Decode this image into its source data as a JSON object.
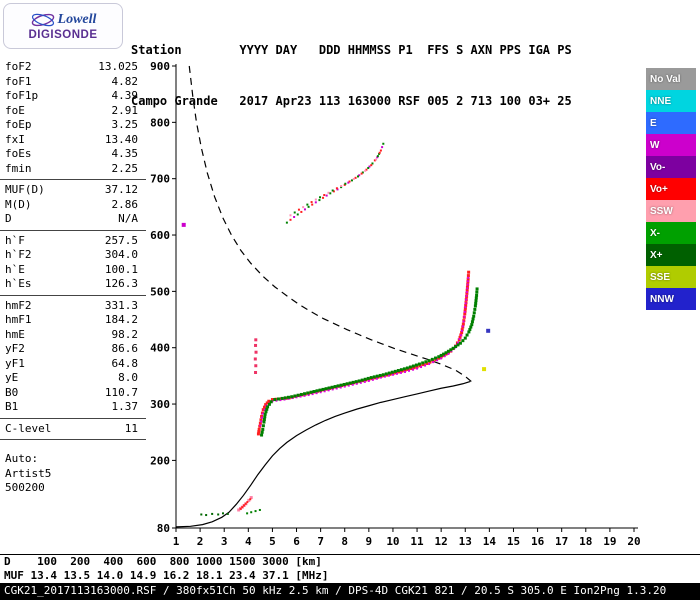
{
  "logo": {
    "line1": "Lowell",
    "line2": "DIGISONDE"
  },
  "header": {
    "line1": "Station        YYYY DAY   DDD HHMMSS P1  FFS S AXN PPS IGA PS",
    "line2": "Campo Grande   2017 Apr23 113 163000 RSF 005 2 713 100 03+ 25",
    "fields": {
      "station": "Campo Grande",
      "year": "2017",
      "date": "Apr23",
      "day": "113",
      "time": "163000",
      "p1": "RSF",
      "ffs": "005",
      "s": "2",
      "axn": "713",
      "pps": "100",
      "iga": "03+",
      "ps": "25"
    }
  },
  "params": {
    "groups": [
      {
        "rows": [
          [
            "foF2",
            "13.025"
          ],
          [
            "foF1",
            "4.82"
          ],
          [
            "foF1p",
            "4.39"
          ],
          [
            "foE",
            "2.91"
          ],
          [
            "foEp",
            "3.25"
          ],
          [
            "fxI",
            "13.40"
          ],
          [
            "foEs",
            "4.35"
          ],
          [
            "fmin",
            "2.25"
          ]
        ]
      },
      {
        "rows": [
          [
            "MUF(D)",
            "37.12"
          ],
          [
            "M(D)",
            "2.86"
          ],
          [
            "D",
            "N/A"
          ]
        ]
      },
      {
        "rows": [
          [
            "h`F",
            "257.5"
          ],
          [
            "h`F2",
            "304.0"
          ],
          [
            "h`E",
            "100.1"
          ],
          [
            "h`Es",
            "126.3"
          ]
        ]
      },
      {
        "rows": [
          [
            "hmF2",
            "331.3"
          ],
          [
            "hmF1",
            "184.2"
          ],
          [
            "hmE",
            "98.2"
          ],
          [
            "yF2",
            "86.6"
          ],
          [
            "yF1",
            "64.8"
          ],
          [
            "yE",
            "8.0"
          ],
          [
            "B0",
            "110.7"
          ],
          [
            "B1",
            "1.37"
          ]
        ]
      },
      {
        "rows": [
          [
            "C-level",
            "11"
          ]
        ]
      },
      {
        "rows": [
          [
            "Auto:",
            ""
          ],
          [
            "Artist5",
            ""
          ],
          [
            "500200",
            ""
          ]
        ]
      }
    ]
  },
  "legend": {
    "items": [
      {
        "label": "No Val",
        "color": "#9a9a9a"
      },
      {
        "label": "NNE",
        "color": "#00d5e0"
      },
      {
        "label": "E",
        "color": "#2e6bff"
      },
      {
        "label": "W",
        "color": "#cc00cc"
      },
      {
        "label": "Vo-",
        "color": "#7d00a0"
      },
      {
        "label": "Vo+",
        "color": "#ff0000"
      },
      {
        "label": "SSW",
        "color": "#ff9fae"
      },
      {
        "label": "X-",
        "color": "#00a000"
      },
      {
        "label": "X+",
        "color": "#006000"
      },
      {
        "label": "SSE",
        "color": "#b0cc00"
      },
      {
        "label": "NNW",
        "color": "#2222cc"
      }
    ]
  },
  "bottom": {
    "d_label": "D",
    "d_values": [
      "100",
      "200",
      "400",
      "600",
      "800",
      "1000",
      "1500",
      "3000"
    ],
    "d_unit": "[km]",
    "muf_label": "MUF",
    "muf_values": [
      "13.4",
      "13.5",
      "14.0",
      "14.9",
      "16.2",
      "18.1",
      "23.4",
      "37.1"
    ],
    "muf_unit": "[MHz]",
    "d_row_text": "D    100  200  400  600  800 1000 1500 3000 [km]",
    "muf_row_text": "MUF 13.4 13.5 14.0 14.9 16.2 18.1 23.4 37.1 [MHz]",
    "footer_text": "CGK21_2017113163000.RSF / 380fx51Ch 50 kHz 2.5 km / DPS-4D CGK21 821 / 20.5 S 305.0 E Ion2Png 1.3.20"
  },
  "chart_data": {
    "type": "scatter",
    "title": "",
    "xlabel": "",
    "ylabel": "",
    "x_unit": "MHz",
    "y_unit": "km",
    "xlim": [
      1,
      20
    ],
    "ylim": [
      80,
      900
    ],
    "xticks": [
      1,
      2,
      3,
      4,
      5,
      6,
      7,
      8,
      9,
      10,
      11,
      12,
      13,
      14,
      15,
      16,
      17,
      18,
      19,
      20
    ],
    "yticks": [
      900,
      800,
      700,
      600,
      500,
      400,
      300,
      200,
      80
    ],
    "grid": false,
    "legend_position": "right",
    "series": [
      {
        "name": "muf-transmission-curve",
        "type": "line",
        "color": "#000000",
        "width": 1.2,
        "dash": "7 5",
        "points": [
          [
            1.55,
            900
          ],
          [
            1.7,
            845
          ],
          [
            1.85,
            800
          ],
          [
            2.05,
            755
          ],
          [
            2.3,
            710
          ],
          [
            2.6,
            668
          ],
          [
            2.95,
            630
          ],
          [
            3.3,
            600
          ],
          [
            3.7,
            572
          ],
          [
            4.1,
            550
          ],
          [
            4.6,
            527
          ],
          [
            5.1,
            508
          ],
          [
            5.6,
            492
          ],
          [
            6.1,
            477
          ],
          [
            6.6,
            464
          ],
          [
            7.1,
            452
          ],
          [
            7.6,
            442
          ],
          [
            8.1,
            432
          ],
          [
            8.6,
            423
          ],
          [
            9.1,
            414
          ],
          [
            9.6,
            406
          ],
          [
            10.1,
            398
          ],
          [
            10.6,
            391
          ],
          [
            11.1,
            384
          ],
          [
            11.6,
            377
          ],
          [
            12.1,
            369
          ],
          [
            12.6,
            360
          ],
          [
            13.0,
            349
          ],
          [
            13.25,
            340
          ]
        ]
      },
      {
        "name": "true-height-profile",
        "type": "line",
        "color": "#000000",
        "width": 1.2,
        "points": [
          [
            1.0,
            82
          ],
          [
            1.6,
            83
          ],
          [
            2.1,
            86
          ],
          [
            2.5,
            91
          ],
          [
            2.9,
            99
          ],
          [
            3.2,
            108
          ],
          [
            3.5,
            122
          ],
          [
            3.8,
            138
          ],
          [
            4.1,
            156
          ],
          [
            4.4,
            175
          ],
          [
            4.7,
            192
          ],
          [
            5.0,
            208
          ],
          [
            5.3,
            221
          ],
          [
            5.6,
            232
          ],
          [
            6.0,
            244
          ],
          [
            6.4,
            254
          ],
          [
            6.8,
            263
          ],
          [
            7.2,
            271
          ],
          [
            7.6,
            278
          ],
          [
            8.0,
            284
          ],
          [
            8.5,
            291
          ],
          [
            9.0,
            297
          ],
          [
            9.5,
            303
          ],
          [
            10.0,
            308
          ],
          [
            10.5,
            313
          ],
          [
            11.0,
            318
          ],
          [
            11.5,
            323
          ],
          [
            12.0,
            328
          ],
          [
            12.5,
            332
          ],
          [
            12.9,
            336
          ],
          [
            13.2,
            340
          ]
        ]
      },
      {
        "name": "f-trace-ordinary-red",
        "type": "dots",
        "color": "#ff2020",
        "size": 3,
        "spacing": 3,
        "points": [
          [
            4.42,
            247
          ],
          [
            4.45,
            255
          ],
          [
            4.5,
            266
          ],
          [
            4.55,
            278
          ],
          [
            4.62,
            290
          ],
          [
            4.72,
            299
          ],
          [
            4.85,
            305
          ],
          [
            5.0,
            308
          ],
          [
            5.3,
            309
          ],
          [
            5.7,
            311
          ],
          [
            6.1,
            315
          ],
          [
            6.5,
            319
          ],
          [
            7.0,
            324
          ],
          [
            7.5,
            329
          ],
          [
            8.0,
            334
          ],
          [
            8.5,
            339
          ],
          [
            9.0,
            344
          ],
          [
            9.5,
            349
          ],
          [
            10.0,
            354
          ],
          [
            10.5,
            360
          ],
          [
            11.0,
            366
          ],
          [
            11.4,
            372
          ],
          [
            11.8,
            379
          ],
          [
            12.1,
            386
          ],
          [
            12.4,
            394
          ],
          [
            12.6,
            403
          ],
          [
            12.75,
            414
          ],
          [
            12.85,
            427
          ],
          [
            12.92,
            442
          ],
          [
            12.98,
            460
          ],
          [
            13.03,
            480
          ],
          [
            13.08,
            502
          ],
          [
            13.12,
            522
          ],
          [
            13.15,
            540
          ]
        ]
      },
      {
        "name": "f-trace-ordinary-magenta",
        "type": "dots",
        "color": "#dd00dd",
        "size": 2,
        "spacing": 4,
        "points": [
          [
            4.5,
            262
          ],
          [
            4.6,
            283
          ],
          [
            4.75,
            297
          ],
          [
            5.0,
            305
          ],
          [
            5.5,
            308
          ],
          [
            6.0,
            312
          ],
          [
            6.5,
            316
          ],
          [
            7.0,
            321
          ],
          [
            7.5,
            326
          ],
          [
            8.0,
            331
          ],
          [
            8.5,
            336
          ],
          [
            9.0,
            341
          ],
          [
            9.5,
            347
          ],
          [
            10.0,
            352
          ],
          [
            10.5,
            357
          ],
          [
            11.0,
            363
          ],
          [
            11.5,
            371
          ],
          [
            12.0,
            381
          ],
          [
            12.3,
            389
          ],
          [
            12.55,
            399
          ],
          [
            12.7,
            409
          ],
          [
            12.82,
            422
          ],
          [
            12.9,
            438
          ],
          [
            12.96,
            455
          ],
          [
            13.0,
            472
          ],
          [
            13.05,
            492
          ],
          [
            13.1,
            512
          ],
          [
            13.13,
            530
          ]
        ]
      },
      {
        "name": "f-trace-extraordinary-green",
        "type": "dots",
        "color": "#008000",
        "size": 3,
        "spacing": 3,
        "points": [
          [
            4.55,
            245
          ],
          [
            4.6,
            255
          ],
          [
            4.65,
            268
          ],
          [
            4.7,
            282
          ],
          [
            4.8,
            295
          ],
          [
            4.95,
            304
          ],
          [
            5.1,
            308
          ],
          [
            5.4,
            310
          ],
          [
            5.8,
            313
          ],
          [
            6.2,
            317
          ],
          [
            6.6,
            321
          ],
          [
            7.1,
            326
          ],
          [
            7.6,
            331
          ],
          [
            8.1,
            336
          ],
          [
            8.6,
            341
          ],
          [
            9.1,
            347
          ],
          [
            9.6,
            352
          ],
          [
            10.1,
            358
          ],
          [
            10.6,
            364
          ],
          [
            11.1,
            371
          ],
          [
            11.5,
            377
          ],
          [
            11.9,
            384
          ],
          [
            12.2,
            391
          ],
          [
            12.5,
            399
          ],
          [
            12.8,
            408
          ],
          [
            13.0,
            417
          ],
          [
            13.15,
            428
          ],
          [
            13.27,
            441
          ],
          [
            13.35,
            456
          ],
          [
            13.42,
            474
          ],
          [
            13.47,
            493
          ],
          [
            13.5,
            510
          ]
        ]
      },
      {
        "name": "second-hop-upper",
        "type": "dots",
        "colors": [
          "#008000",
          "#ff2020",
          "#cc00cc"
        ],
        "size": 2,
        "spacing": 4,
        "points": [
          [
            5.6,
            622
          ],
          [
            5.9,
            632
          ],
          [
            6.2,
            641
          ],
          [
            6.5,
            650
          ],
          [
            6.8,
            658
          ],
          [
            7.1,
            666
          ],
          [
            7.4,
            674
          ],
          [
            7.7,
            681
          ],
          [
            8.0,
            689
          ],
          [
            8.3,
            697
          ],
          [
            8.6,
            706
          ],
          [
            8.9,
            716
          ],
          [
            9.15,
            727
          ],
          [
            9.35,
            738
          ],
          [
            9.5,
            750
          ],
          [
            9.6,
            762
          ],
          [
            9.68,
            772
          ]
        ]
      },
      {
        "name": "second-hop-lower",
        "type": "dots",
        "colors": [
          "#ff8fb5",
          "#008000",
          "#ff2020"
        ],
        "size": 2,
        "spacing": 5,
        "points": [
          [
            5.75,
            635
          ],
          [
            6.1,
            645
          ],
          [
            6.45,
            654
          ],
          [
            6.8,
            663
          ],
          [
            7.15,
            671
          ],
          [
            7.5,
            679
          ],
          [
            7.85,
            687
          ],
          [
            8.2,
            695
          ],
          [
            8.55,
            704
          ],
          [
            8.85,
            714
          ],
          [
            9.1,
            724
          ],
          [
            9.3,
            734
          ],
          [
            9.45,
            746
          ],
          [
            9.55,
            757
          ]
        ]
      },
      {
        "name": "e-layer-dots",
        "type": "points",
        "color": "#006600",
        "size": 2,
        "points": [
          [
            2.05,
            104
          ],
          [
            2.25,
            103
          ],
          [
            2.5,
            105
          ],
          [
            2.75,
            104
          ],
          [
            2.95,
            106
          ],
          [
            3.15,
            105
          ]
        ]
      },
      {
        "name": "es-cluster-pink",
        "type": "dots",
        "color": "#ff7fa5",
        "size": 3,
        "spacing": 3,
        "points": [
          [
            3.6,
            112
          ],
          [
            3.75,
            117
          ],
          [
            3.9,
            123
          ],
          [
            4.02,
            129
          ],
          [
            4.12,
            134
          ],
          [
            4.22,
            139
          ]
        ]
      },
      {
        "name": "es-cluster-red",
        "type": "dots",
        "color": "#ff2020",
        "size": 2,
        "spacing": 3,
        "points": [
          [
            3.68,
            114
          ],
          [
            3.82,
            120
          ],
          [
            3.96,
            126
          ],
          [
            4.08,
            131
          ],
          [
            4.18,
            136
          ]
        ]
      },
      {
        "name": "es-cluster-green",
        "type": "dots",
        "color": "#008000",
        "size": 2,
        "spacing": 3,
        "points": [
          [
            3.95,
            106
          ],
          [
            4.12,
            108
          ],
          [
            4.3,
            110
          ],
          [
            4.48,
            112
          ],
          [
            4.6,
            113
          ]
        ]
      },
      {
        "name": "spread-f-marks",
        "type": "points",
        "color": "#ee3366",
        "size": 3,
        "points": [
          [
            4.3,
            356
          ],
          [
            4.31,
            368
          ],
          [
            4.29,
            380
          ],
          [
            4.32,
            392
          ],
          [
            4.3,
            404
          ],
          [
            4.31,
            414
          ]
        ]
      },
      {
        "name": "stray-echoes",
        "type": "points",
        "size": 4,
        "points": [
          [
            13.78,
            362,
            "#e0e000"
          ],
          [
            13.95,
            430,
            "#3535c0"
          ],
          [
            1.32,
            618,
            "#cc00cc"
          ]
        ]
      }
    ]
  }
}
